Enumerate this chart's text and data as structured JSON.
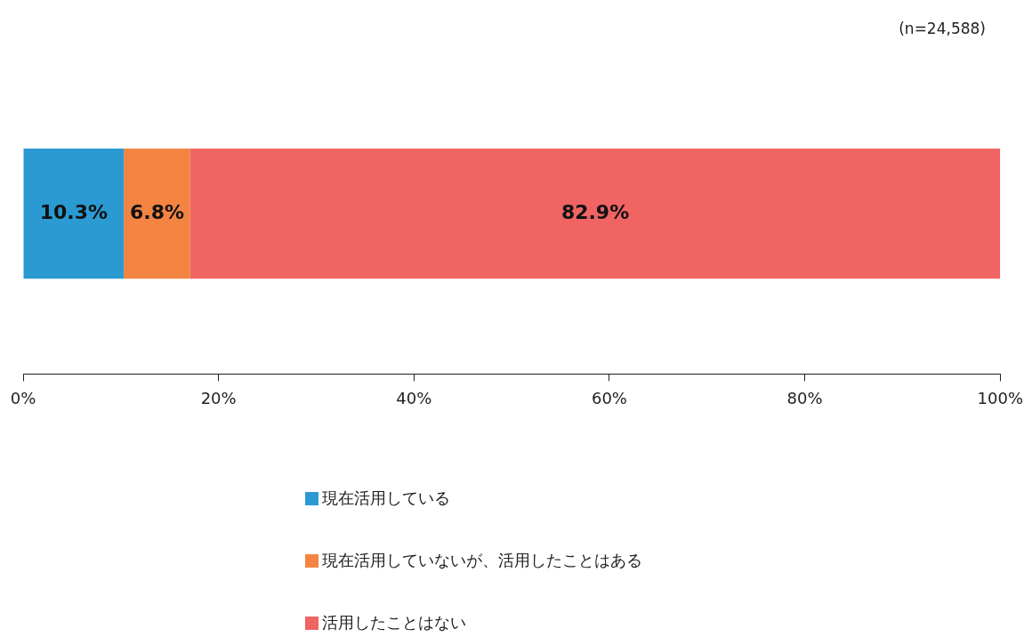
{
  "chart_data": {
    "type": "bar",
    "orientation": "horizontal",
    "stacked": true,
    "categories": [
      null
    ],
    "series": [
      {
        "name": "現在活用している",
        "color": "#2b9ad2",
        "values": [
          10.3
        ],
        "value_labels": [
          "10.3%"
        ]
      },
      {
        "name": "現在活用していないが、活用したことはある",
        "color": "#f38442",
        "values": [
          6.8
        ],
        "value_labels": [
          "6.8%"
        ]
      },
      {
        "name": "活用したことはない",
        "color": "#f06464",
        "values": [
          82.9
        ],
        "value_labels": [
          "82.9%"
        ]
      }
    ],
    "xlim": [
      0,
      100
    ],
    "xticks": [
      {
        "value": 0,
        "label": "0%"
      },
      {
        "value": 20,
        "label": "20%"
      },
      {
        "value": 40,
        "label": "40%"
      },
      {
        "value": 60,
        "label": "60%"
      },
      {
        "value": 80,
        "label": "80%"
      },
      {
        "value": 100,
        "label": "100%"
      }
    ],
    "legend": "bottom",
    "annotations": [
      "(n=24,588)"
    ]
  }
}
